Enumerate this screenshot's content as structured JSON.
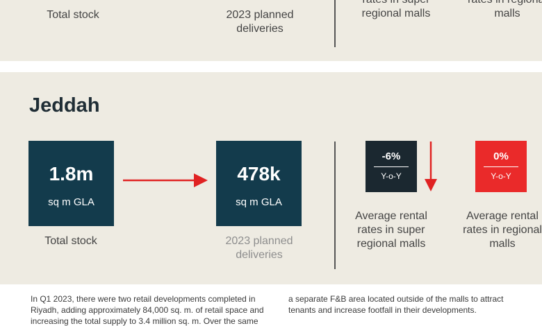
{
  "top_panel": {
    "total_stock_label": "Total stock",
    "planned_label_line1": "2023 planned",
    "planned_label_line2": "deliveries",
    "super_rate_line1": "rates in super",
    "super_rate_line2": "regional malls",
    "regional_rate_line1": "rates in regional",
    "regional_rate_line2": "malls"
  },
  "jeddah": {
    "city": "Jeddah",
    "total_stock": {
      "value": "1.8m",
      "unit": "sq m GLA",
      "label": "Total stock"
    },
    "planned": {
      "value": "478k",
      "unit": "sq m GLA",
      "label_line1": "2023 planned",
      "label_line2": "deliveries"
    },
    "super_regional": {
      "change": "-6%",
      "period": "Y-o-Y",
      "label_line1": "Average rental",
      "label_line2": "rates in super",
      "label_line3": "regional malls"
    },
    "regional": {
      "change": "0%",
      "period": "Y-o-Y",
      "label_line1": "Average rental",
      "label_line2": "rates in regional",
      "label_line3": "malls"
    }
  },
  "body": {
    "left_line1": "In Q1 2023, there were two retail developments completed in",
    "left_line2": "Riyadh, adding approximately 84,000 sq. m. of retail space and",
    "left_line3": "increasing the total supply to 3.4 million sq. m. Over the same",
    "right_line1": "a separate F&B area located outside of the malls to attract",
    "right_line2": "tenants and increase footfall in their developments."
  },
  "colors": {
    "panel_bg": "#eeebe2",
    "box_navy": "#133b4c",
    "box_dark": "#1b2830",
    "accent_red": "#ea2a2a",
    "arrow_red": "#e02222"
  }
}
